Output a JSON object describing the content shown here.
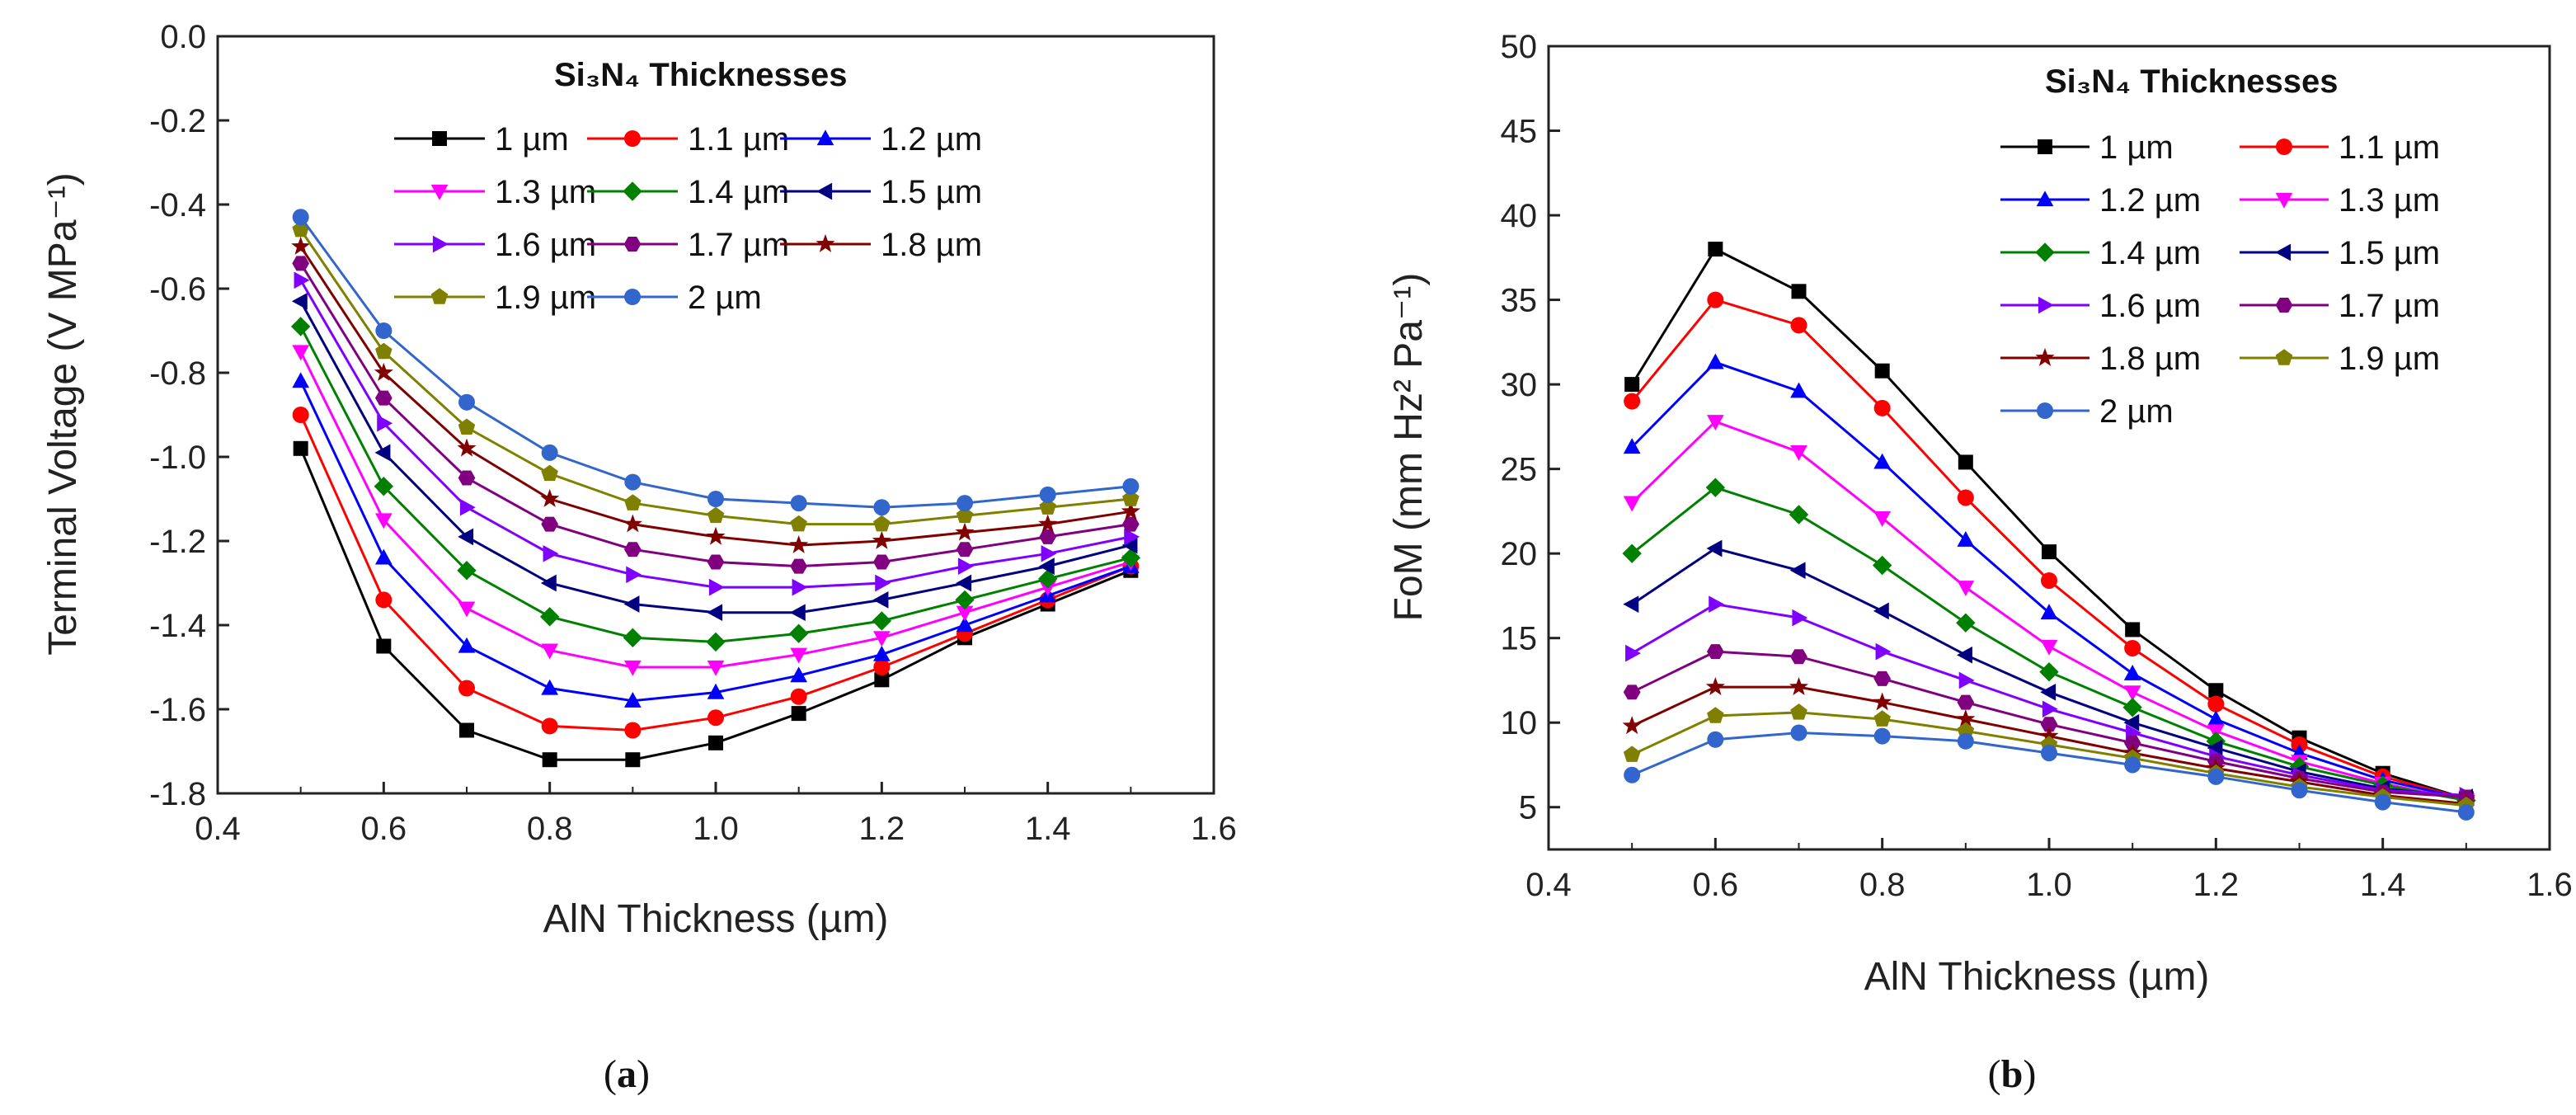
{
  "legend_labels": [
    "1 µm",
    "1.1 µm",
    "1.2 µm",
    "1.3 µm",
    "1.4 µm",
    "1.5 µm",
    "1.6 µm",
    "1.7 µm",
    "1.8 µm",
    "1.9 µm",
    "2 µm"
  ],
  "series_colors": [
    "#000000",
    "#ff0000",
    "#0000ff",
    "#ff00ff",
    "#008000",
    "#000080",
    "#8000ff",
    "#800080",
    "#800000",
    "#808000",
    "#3366cc"
  ],
  "series_markers": [
    "square",
    "circle",
    "triangle-up",
    "triangle-down",
    "diamond",
    "triangle-left",
    "triangle-right",
    "hexagon",
    "star",
    "pentagon",
    "circle"
  ],
  "chart_data": [
    {
      "type": "line",
      "panel": "a",
      "caption": "(a)",
      "ylabel": "Terminal Voltage (V MPa⁻¹)",
      "xlabel": "AlN Thickness (µm)",
      "legend_title": "Si₃N₄ Thicknesses",
      "legend_position": "top-right",
      "xlim": [
        0.4,
        1.6
      ],
      "ylim": [
        -1.8,
        0.0
      ],
      "x_ticks": [
        0.4,
        0.6,
        0.8,
        1.0,
        1.2,
        1.4,
        1.6
      ],
      "x_tick_labels": [
        "0.4",
        "0.6",
        "0.8",
        "1.0",
        "1.2",
        "1.4",
        "1.6"
      ],
      "y_ticks": [
        0.0,
        -0.2,
        -0.4,
        -0.6,
        -0.8,
        -1.0,
        -1.2,
        -1.4,
        -1.6,
        -1.8
      ],
      "y_tick_labels": [
        "0.0",
        "-0.2",
        "-0.4",
        "-0.6",
        "-0.8",
        "-1.0",
        "-1.2",
        "-1.4",
        "-1.6",
        "-1.8"
      ],
      "x": [
        0.5,
        0.6,
        0.7,
        0.8,
        0.9,
        1.0,
        1.1,
        1.2,
        1.3,
        1.4,
        1.5
      ],
      "series": [
        {
          "name": "1 µm",
          "values": [
            -0.98,
            -1.45,
            -1.65,
            -1.72,
            -1.72,
            -1.68,
            -1.61,
            -1.53,
            -1.43,
            -1.35,
            -1.27
          ]
        },
        {
          "name": "1.1 µm",
          "values": [
            -0.9,
            -1.34,
            -1.55,
            -1.64,
            -1.65,
            -1.62,
            -1.57,
            -1.5,
            -1.42,
            -1.34,
            -1.26
          ]
        },
        {
          "name": "1.2 µm",
          "values": [
            -0.82,
            -1.24,
            -1.45,
            -1.55,
            -1.58,
            -1.56,
            -1.52,
            -1.47,
            -1.4,
            -1.33,
            -1.26
          ]
        },
        {
          "name": "1.3 µm",
          "values": [
            -0.75,
            -1.15,
            -1.36,
            -1.46,
            -1.5,
            -1.5,
            -1.47,
            -1.43,
            -1.37,
            -1.31,
            -1.25
          ]
        },
        {
          "name": "1.4 µm",
          "values": [
            -0.69,
            -1.07,
            -1.27,
            -1.38,
            -1.43,
            -1.44,
            -1.42,
            -1.39,
            -1.34,
            -1.29,
            -1.24
          ]
        },
        {
          "name": "1.5 µm",
          "values": [
            -0.63,
            -0.99,
            -1.19,
            -1.3,
            -1.35,
            -1.37,
            -1.37,
            -1.34,
            -1.3,
            -1.26,
            -1.21
          ]
        },
        {
          "name": "1.6 µm",
          "values": [
            -0.58,
            -0.92,
            -1.12,
            -1.23,
            -1.28,
            -1.31,
            -1.31,
            -1.3,
            -1.26,
            -1.23,
            -1.19
          ]
        },
        {
          "name": "1.7 µm",
          "values": [
            -0.54,
            -0.86,
            -1.05,
            -1.16,
            -1.22,
            -1.25,
            -1.26,
            -1.25,
            -1.22,
            -1.19,
            -1.16
          ]
        },
        {
          "name": "1.8 µm",
          "values": [
            -0.5,
            -0.8,
            -0.98,
            -1.1,
            -1.16,
            -1.19,
            -1.21,
            -1.2,
            -1.18,
            -1.16,
            -1.13
          ]
        },
        {
          "name": "1.9 µm",
          "values": [
            -0.46,
            -0.75,
            -0.93,
            -1.04,
            -1.11,
            -1.14,
            -1.16,
            -1.16,
            -1.14,
            -1.12,
            -1.1
          ]
        },
        {
          "name": "2 µm",
          "values": [
            -0.43,
            -0.7,
            -0.87,
            -0.99,
            -1.06,
            -1.1,
            -1.11,
            -1.12,
            -1.11,
            -1.09,
            -1.07
          ]
        }
      ]
    },
    {
      "type": "line",
      "panel": "b",
      "caption": "(b)",
      "ylabel": "FoM (mm Hz² Pa⁻¹)",
      "xlabel": "AlN Thickness (µm)",
      "legend_title": "Si₃N₄ Thicknesses",
      "legend_position": "top-right",
      "xlim": [
        0.4,
        1.6
      ],
      "ylim": [
        2.5,
        50
      ],
      "x_ticks": [
        0.4,
        0.6,
        0.8,
        1.0,
        1.2,
        1.4,
        1.6
      ],
      "x_tick_labels": [
        "0.4",
        "0.6",
        "0.8",
        "1.0",
        "1.2",
        "1.4",
        "1.6"
      ],
      "y_ticks": [
        5,
        10,
        15,
        20,
        25,
        30,
        35,
        40,
        45,
        50
      ],
      "y_tick_labels": [
        "5",
        "10",
        "15",
        "20",
        "25",
        "30",
        "35",
        "40",
        "45",
        "50"
      ],
      "x": [
        0.5,
        0.6,
        0.7,
        0.8,
        0.9,
        1.0,
        1.1,
        1.2,
        1.3,
        1.4,
        1.5
      ],
      "series": [
        {
          "name": "1 µm",
          "values": [
            30.0,
            38.0,
            35.5,
            30.8,
            25.4,
            20.1,
            15.5,
            11.9,
            9.1,
            7.0,
            5.5
          ]
        },
        {
          "name": "1.1 µm",
          "values": [
            29.0,
            35.0,
            33.5,
            28.6,
            23.3,
            18.4,
            14.4,
            11.1,
            8.7,
            6.8,
            5.5
          ]
        },
        {
          "name": "1.2 µm",
          "values": [
            26.3,
            31.3,
            29.6,
            25.4,
            20.8,
            16.5,
            12.9,
            10.2,
            8.2,
            6.6,
            5.5
          ]
        },
        {
          "name": "1.3 µm",
          "values": [
            23.0,
            27.8,
            26.0,
            22.1,
            18.0,
            14.5,
            11.8,
            9.5,
            7.7,
            6.4,
            5.4
          ]
        },
        {
          "name": "1.4 µm",
          "values": [
            20.0,
            23.9,
            22.3,
            19.3,
            15.9,
            13.0,
            10.9,
            8.9,
            7.4,
            6.3,
            5.4
          ]
        },
        {
          "name": "1.5 µm",
          "values": [
            17.0,
            20.3,
            19.0,
            16.6,
            14.0,
            11.8,
            10.0,
            8.5,
            7.1,
            6.1,
            5.6
          ]
        },
        {
          "name": "1.6 µm",
          "values": [
            14.1,
            17.0,
            16.2,
            14.2,
            12.5,
            10.8,
            9.4,
            8.0,
            6.9,
            6.0,
            5.7
          ]
        },
        {
          "name": "1.7 µm",
          "values": [
            11.8,
            14.2,
            13.9,
            12.6,
            11.2,
            9.9,
            8.8,
            7.7,
            6.7,
            5.9,
            5.6
          ]
        },
        {
          "name": "1.8 µm",
          "values": [
            9.8,
            12.1,
            12.1,
            11.2,
            10.2,
            9.2,
            8.2,
            7.3,
            6.5,
            5.7,
            5.2
          ]
        },
        {
          "name": "1.9 µm",
          "values": [
            8.1,
            10.4,
            10.6,
            10.2,
            9.5,
            8.7,
            7.9,
            7.0,
            6.2,
            5.6,
            5.1
          ]
        },
        {
          "name": "2 µm",
          "values": [
            6.9,
            9.0,
            9.4,
            9.2,
            8.9,
            8.2,
            7.5,
            6.8,
            6.0,
            5.3,
            4.7
          ]
        }
      ]
    }
  ]
}
